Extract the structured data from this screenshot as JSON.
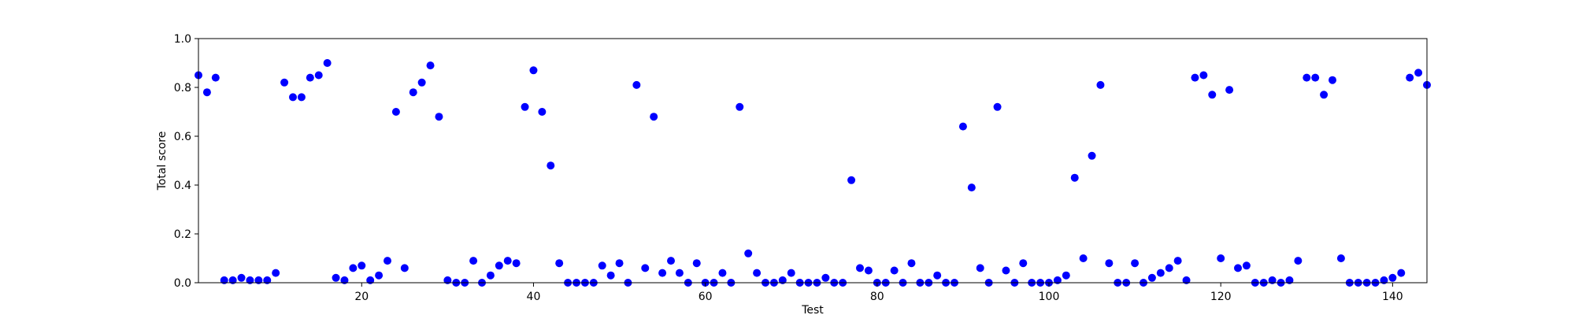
{
  "chart_data": {
    "type": "scatter",
    "title": "",
    "xlabel": "Test",
    "ylabel": "Total score",
    "xlim": [
      1,
      144
    ],
    "ylim": [
      0.0,
      1.0
    ],
    "x_ticks": [
      20,
      40,
      60,
      80,
      100,
      120,
      140
    ],
    "y_ticks": [
      0.0,
      0.2,
      0.4,
      0.6,
      0.8,
      1.0
    ],
    "y_tick_labels": [
      "0.0",
      "0.2",
      "0.4",
      "0.6",
      "0.8",
      "1.0"
    ],
    "grid": false,
    "marker_color": "#0000ff",
    "series": [
      {
        "x": [
          1,
          2,
          3,
          4,
          5,
          6,
          7,
          8,
          9,
          10,
          11,
          12,
          13,
          14,
          15,
          16,
          17,
          18,
          19,
          20,
          21,
          22,
          23,
          24,
          25,
          26,
          27,
          28,
          29,
          30,
          31,
          32,
          33,
          34,
          35,
          36,
          37,
          38,
          39,
          40,
          41,
          42,
          43,
          44,
          45,
          46,
          47,
          48,
          49,
          50,
          51,
          52,
          53,
          54,
          55,
          56,
          57,
          58,
          59,
          60,
          61,
          62,
          63,
          64,
          65,
          66,
          67,
          68,
          69,
          70,
          71,
          72,
          73,
          74,
          75,
          76,
          77,
          78,
          79,
          80,
          81,
          82,
          83,
          84,
          85,
          86,
          87,
          88,
          89,
          90,
          91,
          92,
          93,
          94,
          95,
          96,
          97,
          98,
          99,
          100,
          101,
          102,
          103,
          104,
          105,
          106,
          107,
          108,
          109,
          110,
          111,
          112,
          113,
          114,
          115,
          116,
          117,
          118,
          119,
          120,
          121,
          122,
          123,
          124,
          125,
          126,
          127,
          128,
          129,
          130,
          131,
          132,
          133,
          134,
          135,
          136,
          137,
          138,
          139,
          140,
          141,
          142,
          143,
          144
        ],
        "y": [
          0.85,
          0.78,
          0.84,
          0.01,
          0.01,
          0.02,
          0.01,
          0.01,
          0.01,
          0.04,
          0.82,
          0.76,
          0.76,
          0.84,
          0.85,
          0.9,
          0.02,
          0.01,
          0.06,
          0.07,
          0.01,
          0.03,
          0.09,
          0.7,
          0.06,
          0.78,
          0.82,
          0.89,
          0.68,
          0.01,
          0.0,
          0.0,
          0.09,
          0.0,
          0.03,
          0.07,
          0.09,
          0.08,
          0.72,
          0.87,
          0.7,
          0.48,
          0.08,
          0.0,
          0.0,
          0.0,
          0.0,
          0.07,
          0.03,
          0.08,
          0.0,
          0.81,
          0.06,
          0.68,
          0.04,
          0.09,
          0.04,
          0.0,
          0.08,
          0.0,
          0.0,
          0.04,
          0.0,
          0.72,
          0.12,
          0.04,
          0.0,
          0.0,
          0.01,
          0.04,
          0.0,
          0.0,
          0.0,
          0.02,
          0.0,
          0.0,
          0.42,
          0.06,
          0.05,
          0.0,
          0.0,
          0.05,
          0.0,
          0.08,
          0.0,
          0.0,
          0.03,
          0.0,
          0.0,
          0.64,
          0.39,
          0.06,
          0.0,
          0.72,
          0.05,
          0.0,
          0.08,
          0.0,
          0.0,
          0.0,
          0.01,
          0.03,
          0.43,
          0.1,
          0.52,
          0.81,
          0.08,
          0.0,
          0.0,
          0.08,
          0.0,
          0.02,
          0.04,
          0.06,
          0.09,
          0.01,
          0.84,
          0.85,
          0.77,
          0.1,
          0.79,
          0.06,
          0.07,
          0.0,
          0.0,
          0.01,
          0.0,
          0.01,
          0.09,
          0.84,
          0.84,
          0.77,
          0.83,
          0.1,
          0.0,
          0.0,
          0.0,
          0.0,
          0.01,
          0.02,
          0.04,
          0.84,
          0.86,
          0.81
        ]
      }
    ]
  }
}
